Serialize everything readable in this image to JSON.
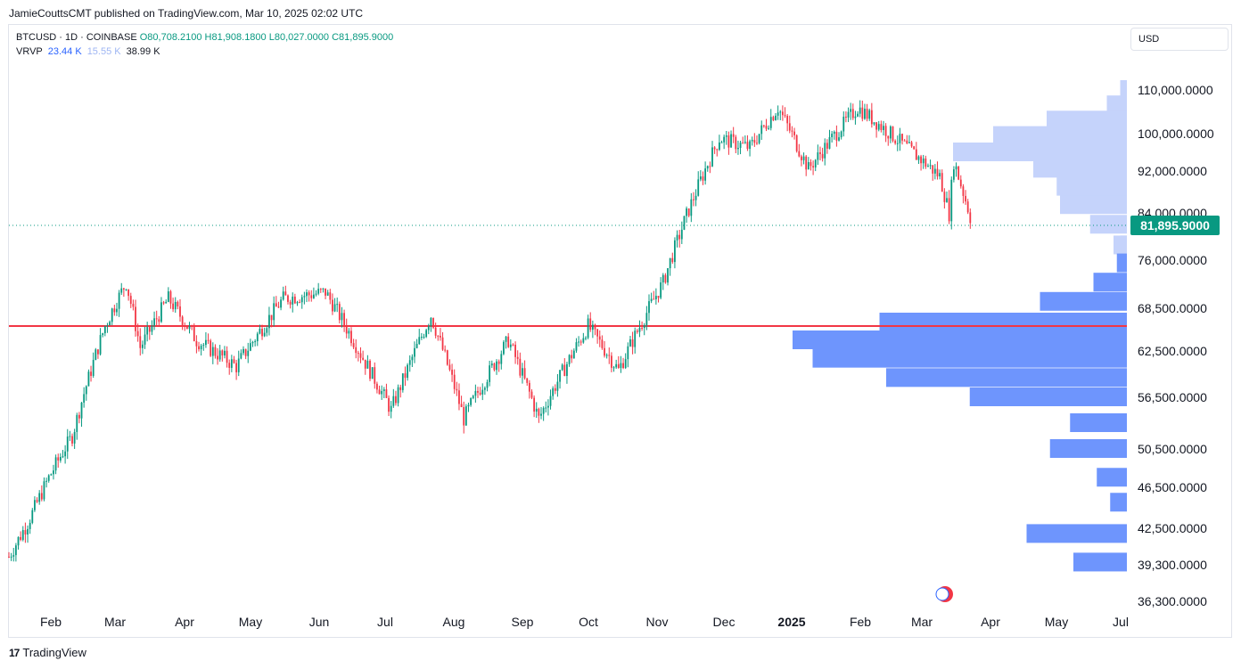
{
  "header": {
    "published": "JamieCouttsCMT published on TradingView.com, Mar 10, 2025 02:02 UTC"
  },
  "legend": {
    "symbol": "BTCUSD · 1D · COINBASE",
    "open": "O80,708.2100",
    "high": "H81,908.1800",
    "low": "L80,027.0000",
    "close": "C81,895.9000",
    "indicator": "VRVP",
    "vol_up": "23.44 K",
    "vol_down": "15.55 K",
    "vol_total": "38.99 K"
  },
  "currency_button": "USD",
  "footer": {
    "brand": "TradingView"
  },
  "chart_data": {
    "type": "candlestick",
    "symbol": "BTCUSD",
    "interval": "1D",
    "exchange": "COINBASE",
    "price_scale_labels": [
      "110,000.0000",
      "100,000.0000",
      "92,000.0000",
      "84,000.0000",
      "76,000.0000",
      "68,500.0000",
      "62,500.0000",
      "56,500.0000",
      "50,500.0000",
      "46,500.0000",
      "42,500.0000",
      "39,300.0000",
      "36,300.0000"
    ],
    "time_labels": [
      "Feb",
      "Mar",
      "Apr",
      "May",
      "Jun",
      "Jul",
      "Aug",
      "Sep",
      "Oct",
      "Nov",
      "Dec",
      "2025",
      "Feb",
      "Mar",
      "Apr",
      "May",
      "Jul"
    ],
    "last_price": "81,895.9000",
    "horizontal_line": 66000,
    "closes_approx": [
      {
        "date": "2024-01-24",
        "close": 40000
      },
      {
        "date": "2024-02-01",
        "close": 43000
      },
      {
        "date": "2024-02-10",
        "close": 47500
      },
      {
        "date": "2024-02-20",
        "close": 52000
      },
      {
        "date": "2024-02-28",
        "close": 60000
      },
      {
        "date": "2024-03-05",
        "close": 66000
      },
      {
        "date": "2024-03-14",
        "close": 72500
      },
      {
        "date": "2024-03-20",
        "close": 63000
      },
      {
        "date": "2024-04-01",
        "close": 70000
      },
      {
        "date": "2024-04-13",
        "close": 64000
      },
      {
        "date": "2024-04-30",
        "close": 60500
      },
      {
        "date": "2024-05-20",
        "close": 70000
      },
      {
        "date": "2024-06-07",
        "close": 71000
      },
      {
        "date": "2024-06-24",
        "close": 61000
      },
      {
        "date": "2024-07-05",
        "close": 55000
      },
      {
        "date": "2024-07-22",
        "close": 67500
      },
      {
        "date": "2024-08-05",
        "close": 54000
      },
      {
        "date": "2024-08-24",
        "close": 64000
      },
      {
        "date": "2024-09-06",
        "close": 54000
      },
      {
        "date": "2024-09-27",
        "close": 66000
      },
      {
        "date": "2024-10-10",
        "close": 60000
      },
      {
        "date": "2024-10-29",
        "close": 72500
      },
      {
        "date": "2024-11-12",
        "close": 88000
      },
      {
        "date": "2024-11-22",
        "close": 99000
      },
      {
        "date": "2024-12-05",
        "close": 97000
      },
      {
        "date": "2024-12-17",
        "close": 106000
      },
      {
        "date": "2024-12-30",
        "close": 92500
      },
      {
        "date": "2025-01-20",
        "close": 106000
      },
      {
        "date": "2025-02-03",
        "close": 100000
      },
      {
        "date": "2025-02-24",
        "close": 91000
      },
      {
        "date": "2025-02-28",
        "close": 84000
      },
      {
        "date": "2025-03-02",
        "close": 94000
      },
      {
        "date": "2025-03-10",
        "close": 81896
      }
    ],
    "volume_profile": [
      {
        "price": 110000,
        "up": 0.0,
        "down": 0.02
      },
      {
        "price": 106500,
        "up": 0.0,
        "down": 0.06
      },
      {
        "price": 103000,
        "up": 0.0,
        "down": 0.24
      },
      {
        "price": 99500,
        "up": 0.0,
        "down": 0.4
      },
      {
        "price": 96000,
        "up": 0.0,
        "down": 0.52
      },
      {
        "price": 92500,
        "up": 0.0,
        "down": 0.28
      },
      {
        "price": 89000,
        "up": 0.0,
        "down": 0.21
      },
      {
        "price": 85500,
        "up": 0.0,
        "down": 0.2
      },
      {
        "price": 82000,
        "up": 0.0,
        "down": 0.11
      },
      {
        "price": 78500,
        "up": 0.02,
        "down": 0.04
      },
      {
        "price": 75500,
        "up": 0.03,
        "down": 0.0
      },
      {
        "price": 72500,
        "up": 0.1,
        "down": 0.0
      },
      {
        "price": 69500,
        "up": 0.26,
        "down": 0.0
      },
      {
        "price": 66500,
        "up": 0.74,
        "down": 0.0
      },
      {
        "price": 64000,
        "up": 1.0,
        "down": 0.0
      },
      {
        "price": 61500,
        "up": 0.94,
        "down": 0.0
      },
      {
        "price": 59000,
        "up": 0.72,
        "down": 0.0
      },
      {
        "price": 56500,
        "up": 0.47,
        "down": 0.0
      },
      {
        "price": 53500,
        "up": 0.17,
        "down": 0.0
      },
      {
        "price": 50500,
        "up": 0.23,
        "down": 0.0
      },
      {
        "price": 47500,
        "up": 0.09,
        "down": 0.0
      },
      {
        "price": 45000,
        "up": 0.05,
        "down": 0.0
      },
      {
        "price": 42000,
        "up": 0.3,
        "down": 0.0
      },
      {
        "price": 39500,
        "up": 0.16,
        "down": 0.0
      }
    ],
    "colors": {
      "up": "#089981",
      "down": "#f23645",
      "hline": "#f23645",
      "vp_up": "#6e95fd",
      "vp_down": "#c5d3fb",
      "last_price_bg": "#089981"
    }
  }
}
